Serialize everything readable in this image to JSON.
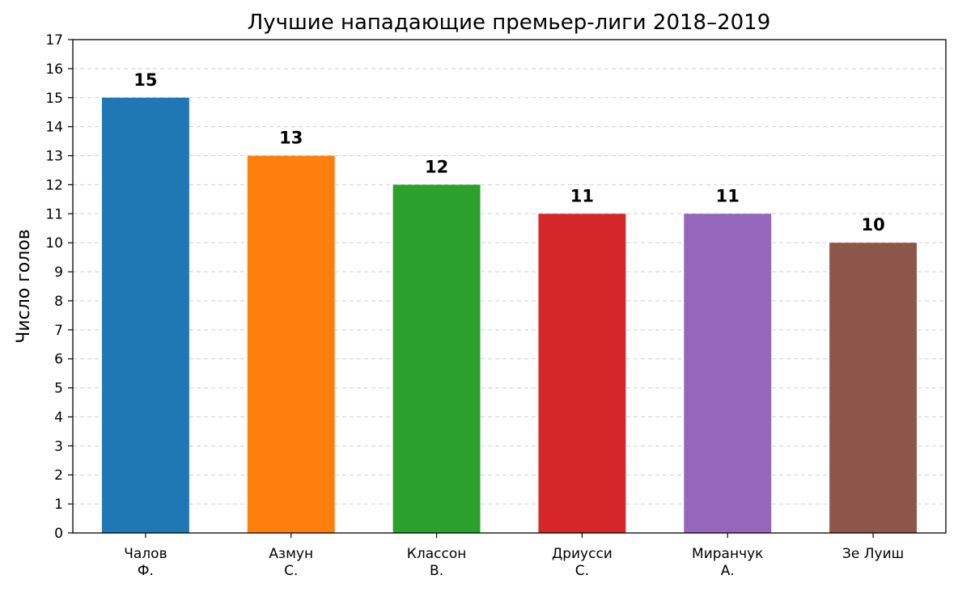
{
  "chart_data": {
    "type": "bar",
    "title": "Лучшие нападающие премьер-лиги 2018–2019",
    "xlabel": "",
    "ylabel": "Число голов",
    "categories": [
      [
        "Чалов",
        "Ф."
      ],
      [
        "Азмун",
        "С."
      ],
      [
        "Классон",
        "В."
      ],
      [
        "Дриусси",
        "С."
      ],
      [
        "Миранчук",
        "А."
      ],
      [
        "Зе Луиш"
      ]
    ],
    "values": [
      15,
      13,
      12,
      11,
      11,
      10
    ],
    "colors": [
      "#1f77b4",
      "#ff7f0e",
      "#2ca02c",
      "#d62728",
      "#9467bd",
      "#8c564b"
    ],
    "ylim": [
      0,
      17
    ],
    "yticks": [
      0,
      1,
      2,
      3,
      4,
      5,
      6,
      7,
      8,
      9,
      10,
      11,
      12,
      13,
      14,
      15,
      16,
      17
    ],
    "grid": "horizontal-dashed",
    "data_labels": true
  }
}
